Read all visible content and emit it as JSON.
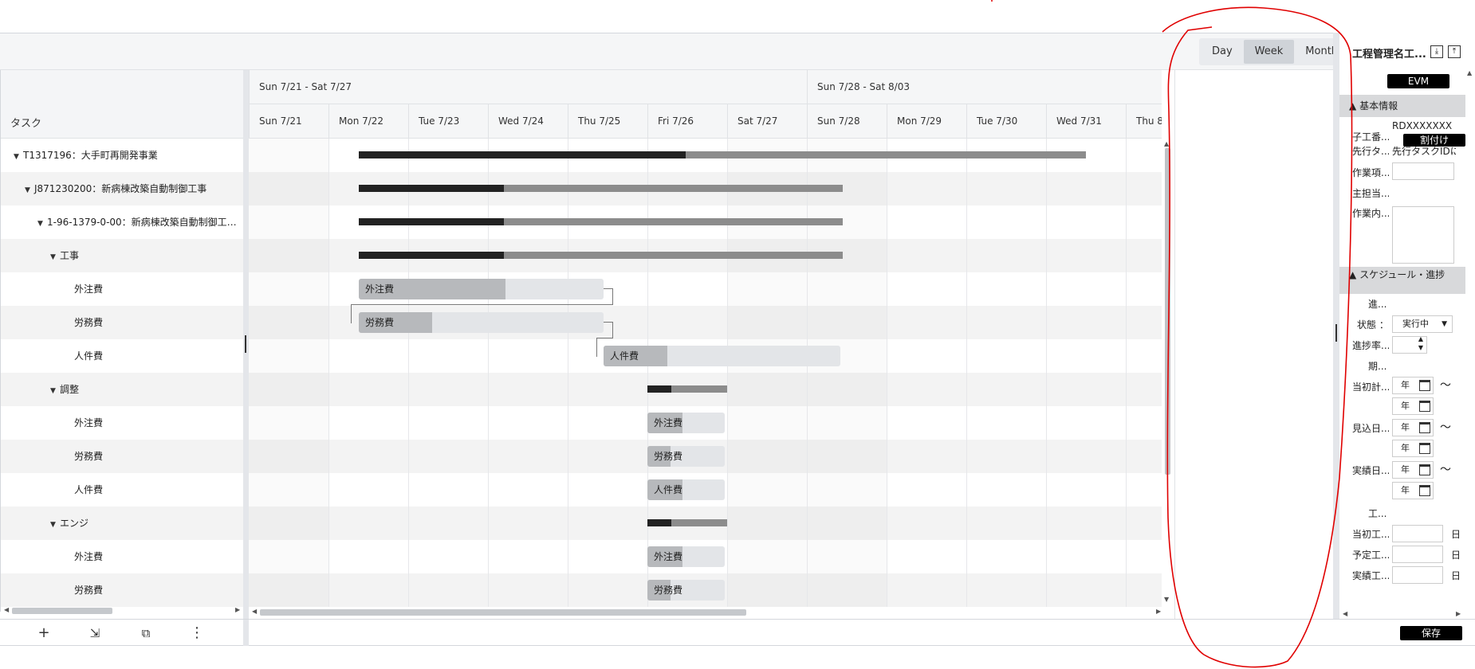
{
  "views": {
    "day": "Day",
    "week": "Week",
    "month": "Month",
    "active": "Week"
  },
  "task_list": {
    "header": "タスク",
    "rows": [
      {
        "label": "T1317196：大手町再開発事業",
        "expanded": true
      },
      {
        "label": "J871230200：新病棟改築自動制御工事",
        "expanded": true
      },
      {
        "label": "1-96-1379-0-00：新病棟改築自動制御工…",
        "expanded": true
      },
      {
        "label": "工事",
        "expanded": true
      },
      {
        "label": "外注費"
      },
      {
        "label": "労務費"
      },
      {
        "label": "人件費"
      },
      {
        "label": "調整",
        "expanded": true
      },
      {
        "label": "外注費"
      },
      {
        "label": "労務費"
      },
      {
        "label": "人件費"
      },
      {
        "label": "エンジ",
        "expanded": true
      },
      {
        "label": "外注費"
      },
      {
        "label": "労務費"
      }
    ]
  },
  "timeline": {
    "weeks": [
      "Sun 7/21 - Sat 7/27",
      "Sun 7/28 - Sat 8/03"
    ],
    "days": [
      "Sun 7/21",
      "Mon 7/22",
      "Tue 7/23",
      "Wed 7/24",
      "Thu 7/25",
      "Fri 7/26",
      "Sat 7/27",
      "Sun 7/28",
      "Mon 7/29",
      "Tue 7/30",
      "Wed 7/31",
      "Thu 8"
    ]
  },
  "bars": [
    {
      "type": "summary",
      "row": 0,
      "start": 1.38,
      "end": 10.5,
      "progress": 0.45
    },
    {
      "type": "summary",
      "row": 1,
      "start": 1.38,
      "end": 7.45,
      "progress": 0.3
    },
    {
      "type": "summary",
      "row": 2,
      "start": 1.38,
      "end": 7.45,
      "progress": 0.3
    },
    {
      "type": "summary",
      "row": 3,
      "start": 1.38,
      "end": 7.45,
      "progress": 0.3
    },
    {
      "type": "task",
      "row": 4,
      "start": 1.38,
      "end": 4.45,
      "progress": 0.6,
      "label": "外注費"
    },
    {
      "type": "task",
      "row": 5,
      "start": 1.38,
      "end": 4.45,
      "progress": 0.3,
      "label": "労務費"
    },
    {
      "type": "task",
      "row": 6,
      "start": 4.45,
      "end": 7.42,
      "progress": 0.27,
      "label": "人件費"
    },
    {
      "type": "summary",
      "row": 7,
      "start": 5.0,
      "end": 6.0,
      "progress": 0.3
    },
    {
      "type": "task",
      "row": 8,
      "start": 5.0,
      "end": 5.97,
      "progress": 0.45,
      "label": "外注費"
    },
    {
      "type": "task",
      "row": 9,
      "start": 5.0,
      "end": 5.97,
      "progress": 0.3,
      "label": "労務費"
    },
    {
      "type": "task",
      "row": 10,
      "start": 5.0,
      "end": 5.97,
      "progress": 0.45,
      "label": "人件費"
    },
    {
      "type": "summary",
      "row": 11,
      "start": 5.0,
      "end": 6.0,
      "progress": 0.3
    },
    {
      "type": "task",
      "row": 12,
      "start": 5.0,
      "end": 5.97,
      "progress": 0.45,
      "label": "外注費"
    },
    {
      "type": "task",
      "row": 13,
      "start": 5.0,
      "end": 5.97,
      "progress": 0.3,
      "label": "労務費"
    }
  ],
  "form": {
    "title": "工程管理名工...",
    "evm_button": "EVM",
    "basic_section": "基本情報",
    "child_no_label": "子工番...",
    "child_no_value": "RDXXXXXXX",
    "assign_button": "割付け",
    "predecessor_label": "先行タ...",
    "predecessor_value": "先行タスクIDに...",
    "work_item_label": "作業項...",
    "main_owner_label": "主担当...",
    "work_content_label": "作業内...",
    "schedule_section": "スケジュール・進捗",
    "progress_heading": "進...",
    "status_label": "状態 ：",
    "status_value": "実行中",
    "progress_rate_label": "進捗率...",
    "period_heading": "期...",
    "initial_plan_label": "当初計...",
    "forecast_label": "見込日...",
    "actual_label": "実績日...",
    "year_placeholder": "年",
    "tilde": "〜",
    "work_days_heading": "工...",
    "initial_days_label": "当初工...",
    "planned_days_label": "予定工...",
    "actual_days_label": "実績工...",
    "day_unit": "日",
    "save_button": "保存"
  },
  "toolbar": {
    "add_icon": "plus-icon",
    "indent_icon": "move-into-icon",
    "copy_icon": "copy-icon",
    "more_icon": "more-vertical-icon"
  },
  "colors": {
    "annotation": "#e00000",
    "summary_done": "#222222",
    "summary_rest": "#8c8c8c",
    "task_progress": "#b7b9bc",
    "task_bg": "#e3e5e8"
  }
}
